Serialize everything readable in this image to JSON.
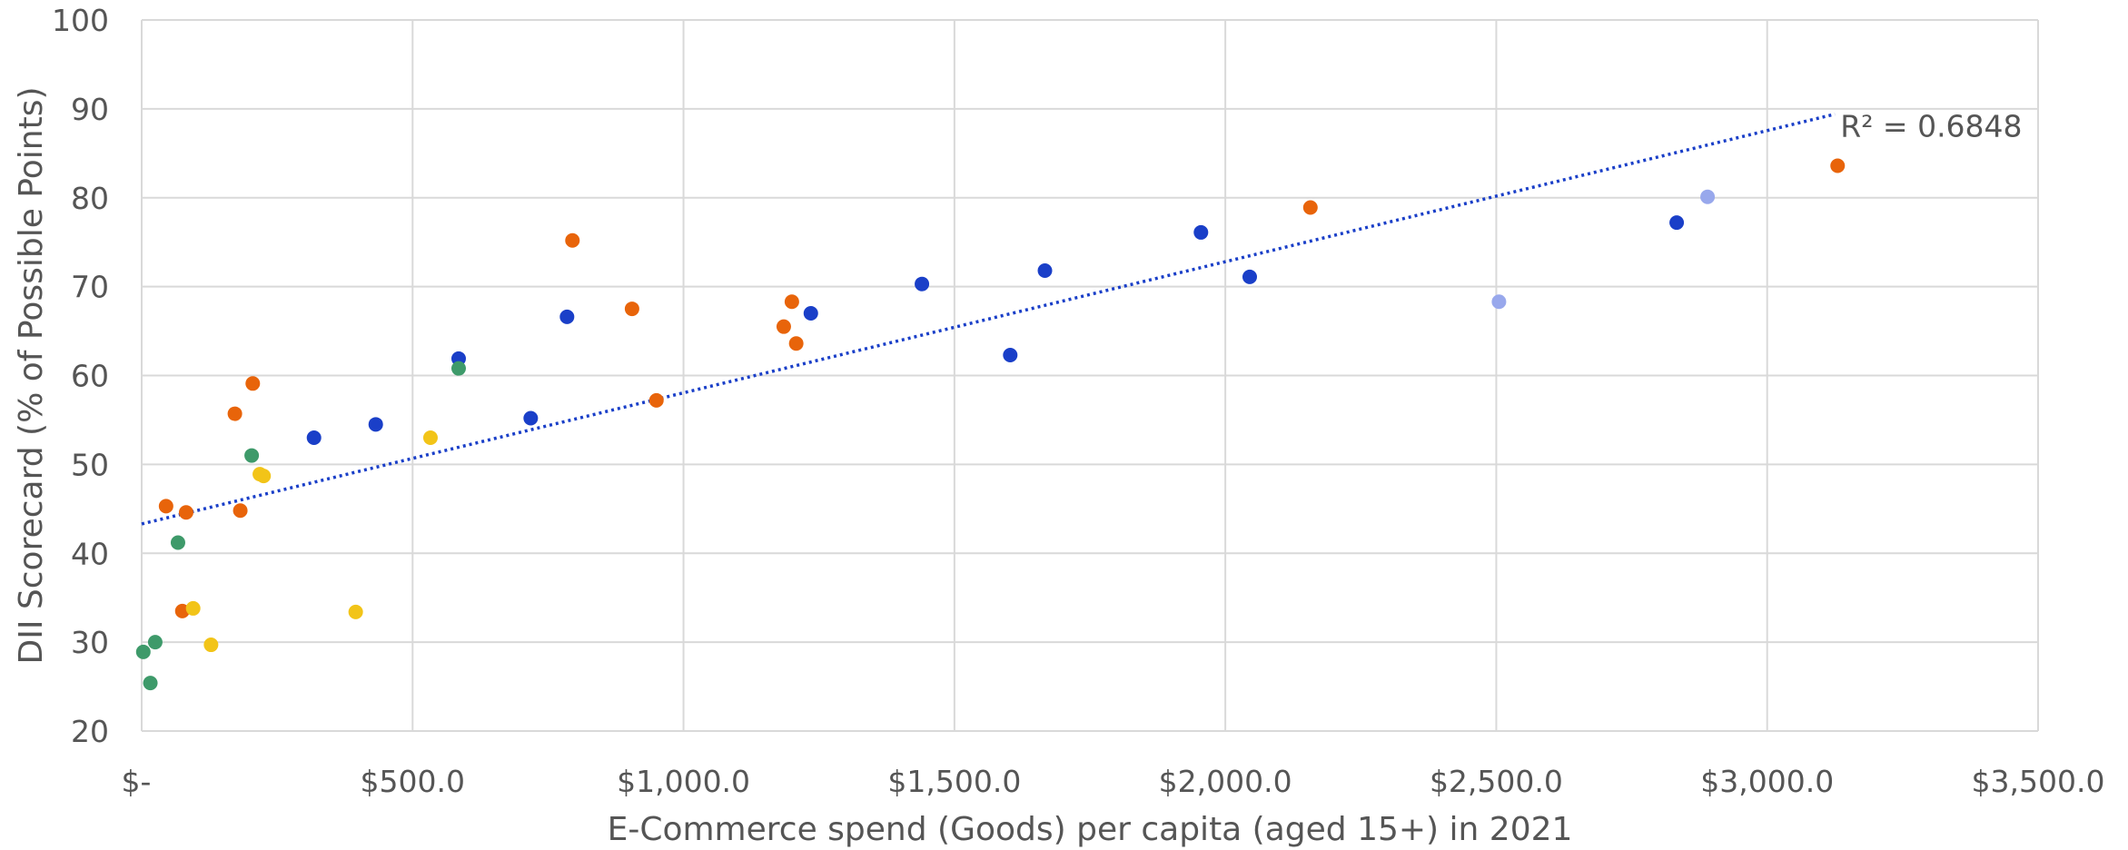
{
  "chart_data": {
    "type": "scatter",
    "xlabel": "E-Commerce spend (Goods) per capita (aged 15+) in 2021",
    "ylabel": "DII Scorecard (% of Possible Points)",
    "xlim": [
      0,
      3500
    ],
    "ylim": [
      20,
      100
    ],
    "x_tick_labels": [
      "$-",
      "$500.0",
      "$1,000.0",
      "$1,500.0",
      "$2,000.0",
      "$2,500.0",
      "$3,000.0",
      "$3,500.0"
    ],
    "y_tick_labels": [
      "20",
      "30",
      "40",
      "50",
      "60",
      "70",
      "80",
      "90",
      "100"
    ],
    "grid": true,
    "colors": {
      "orange": "#E8640A",
      "blue": "#1A3FC8",
      "green": "#3E9A6A",
      "yellow": "#F2C418",
      "lightblue": "#98A8EC",
      "trend": "#1A3FC8",
      "grid": "#d9d9d9",
      "text": "#555555"
    },
    "trendline": {
      "type": "linear",
      "x": [
        0,
        3125
      ],
      "y": [
        43.3,
        89.4
      ],
      "style": "dotted",
      "label": "R² = 0.6848"
    },
    "series": [
      {
        "color_key": "orange",
        "points": [
          [
            45,
            45.3
          ],
          [
            82,
            44.6
          ],
          [
            75,
            33.5
          ],
          [
            172,
            55.7
          ],
          [
            182,
            44.8
          ],
          [
            205,
            59.1
          ],
          [
            795,
            75.2
          ],
          [
            905,
            67.5
          ],
          [
            950,
            57.2
          ],
          [
            1185,
            65.5
          ],
          [
            1200,
            68.3
          ],
          [
            1208,
            63.6
          ],
          [
            2157,
            78.9
          ],
          [
            3130,
            83.6
          ]
        ]
      },
      {
        "color_key": "blue",
        "points": [
          [
            318,
            53.0
          ],
          [
            432,
            54.5
          ],
          [
            585,
            61.9
          ],
          [
            718,
            55.2
          ],
          [
            785,
            66.6
          ],
          [
            1235,
            67.0
          ],
          [
            1440,
            70.3
          ],
          [
            1603,
            62.3
          ],
          [
            1667,
            71.8
          ],
          [
            1955,
            76.1
          ],
          [
            2045,
            71.1
          ],
          [
            2833,
            77.2
          ]
        ]
      },
      {
        "color_key": "green",
        "points": [
          [
            3,
            28.9
          ],
          [
            16,
            25.4
          ],
          [
            25,
            30.0
          ],
          [
            67,
            41.2
          ],
          [
            203,
            51.0
          ],
          [
            585,
            60.8
          ]
        ]
      },
      {
        "color_key": "yellow",
        "points": [
          [
            95,
            33.8
          ],
          [
            128,
            29.7
          ],
          [
            218,
            48.9
          ],
          [
            225,
            48.7
          ],
          [
            395,
            33.4
          ],
          [
            533,
            53.0
          ]
        ]
      },
      {
        "color_key": "lightblue",
        "points": [
          [
            2505,
            68.3
          ],
          [
            2890,
            80.1
          ]
        ]
      }
    ]
  }
}
